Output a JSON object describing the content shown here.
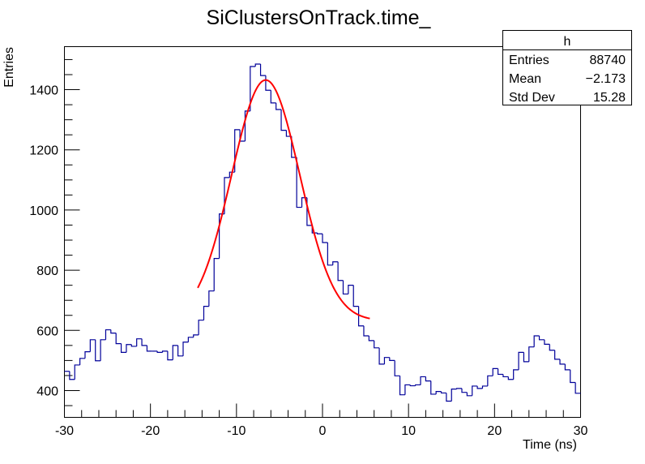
{
  "chart_data": {
    "type": "histogram",
    "title": "SiClustersOnTrack.time_",
    "xlabel": "Time (ns)",
    "ylabel": "Entries",
    "xlim": [
      -30,
      30
    ],
    "ylim": [
      311,
      1543
    ],
    "grid": false,
    "line_color": "#000099",
    "bin_edges_start": -30,
    "bin_width": 0.6,
    "values": [
      464,
      437,
      485,
      507,
      529,
      569,
      499,
      569,
      602,
      591,
      556,
      527,
      553,
      547,
      572,
      550,
      531,
      531,
      527,
      531,
      502,
      550,
      515,
      561,
      577,
      585,
      634,
      680,
      731,
      839,
      987,
      1108,
      1126,
      1267,
      1229,
      1329,
      1477,
      1485,
      1447,
      1398,
      1356,
      1334,
      1265,
      1245,
      1175,
      1009,
      1041,
      949,
      924,
      921,
      892,
      817,
      828,
      766,
      721,
      750,
      680,
      615,
      582,
      566,
      542,
      488,
      510,
      500,
      449,
      386,
      419,
      416,
      419,
      446,
      432,
      388,
      397,
      392,
      365,
      405,
      407,
      394,
      383,
      415,
      407,
      415,
      449,
      473,
      454,
      446,
      437,
      469,
      527,
      496,
      545,
      582,
      569,
      554,
      534,
      504,
      488,
      469,
      427,
      391
    ],
    "x_ticks": [
      "-30",
      "-20",
      "-10",
      "0",
      "10",
      "20",
      "30"
    ],
    "x_tick_values": [
      -30,
      -20,
      -10,
      0,
      10,
      20,
      30
    ],
    "y_ticks": [
      "400",
      "600",
      "800",
      "1000",
      "1200",
      "1400"
    ],
    "y_tick_values": [
      400,
      600,
      800,
      1000,
      1200,
      1400
    ],
    "fit": {
      "function": "gaussian + constant",
      "color": "#ff0000",
      "amplitude": 800,
      "mean": -6.6,
      "sigma": 3.96,
      "constant": 632,
      "x_range": [
        -14.5,
        5.5
      ]
    },
    "stats_box": {
      "name": "h",
      "rows": [
        {
          "label": "Entries",
          "value": "88740"
        },
        {
          "label": "Mean",
          "value": "−2.173"
        },
        {
          "label": "Std Dev",
          "value": "15.28"
        }
      ]
    }
  }
}
